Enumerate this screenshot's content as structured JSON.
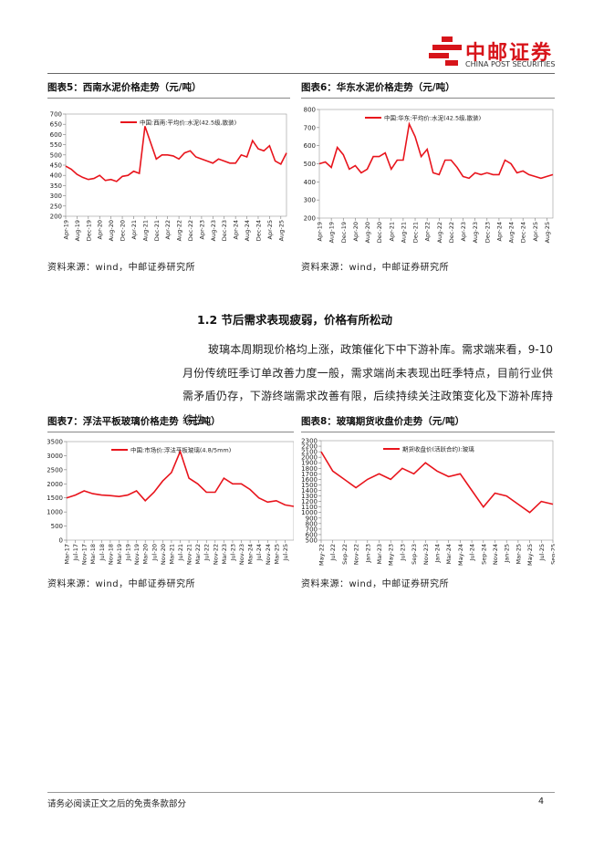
{
  "header": {
    "logo_cn": "中邮证券",
    "logo_en": "CHINA POST SECURITIES"
  },
  "section_title": "1.2 节后需求表现疲弱，价格有所松动",
  "paragraph": "玻璃本周期现价格均上涨，政策催化下中下游补库。需求端来看，9-10 月份传统旺季订单改善力度一般，需求端尚未表现出旺季特点，目前行业供需矛盾仍存，下游终端需求改善有限，后续持续关注政策变化及下游补库持续性。",
  "footer": {
    "disclaimer": "请务必阅读正文之后的免责条款部分",
    "page": "4"
  },
  "chart_data": [
    {
      "type": "line",
      "title": "图表5：西南水泥价格走势（元/吨）",
      "source": "资料来源：wind，中邮证券研究所",
      "categories": [
        "Apr-19",
        null,
        "Aug-19",
        null,
        "Dec-19",
        null,
        "Apr-20",
        null,
        "Aug-20",
        null,
        "Dec-20",
        null,
        "Apr-21",
        null,
        "Aug-21",
        null,
        "Dec-21",
        null,
        "Apr-22",
        null,
        "Aug-22",
        null,
        "Dec-22",
        null,
        "Apr-23",
        null,
        "Aug-23",
        null,
        "Dec-23",
        null,
        "Apr-24",
        null,
        "Aug-24",
        null,
        "Dec-24",
        null,
        "Apr-25",
        null,
        "Aug-25",
        null
      ],
      "series": [
        {
          "name": "中国:西南:平均价:水泥(42.5级,散装)",
          "color": "#e8141c",
          "values": [
            445,
            430,
            405,
            390,
            380,
            385,
            400,
            375,
            380,
            370,
            395,
            400,
            420,
            410,
            640,
            560,
            480,
            500,
            500,
            495,
            480,
            510,
            520,
            490,
            480,
            470,
            460,
            480,
            470,
            460,
            460,
            500,
            490,
            570,
            530,
            520,
            545,
            470,
            455,
            510
          ]
        }
      ],
      "ylim": [
        200,
        700
      ],
      "yticks": [
        200,
        250,
        300,
        350,
        400,
        450,
        500,
        550,
        600,
        650,
        700
      ]
    },
    {
      "type": "line",
      "title": "图表6：华东水泥价格走势（元/吨）",
      "source": "资料来源：wind，中邮证券研究所",
      "categories": [
        "Apr-19",
        null,
        "Aug-19",
        null,
        "Dec-19",
        null,
        "Apr-20",
        null,
        "Aug-20",
        null,
        "Dec-20",
        null,
        "Apr-21",
        null,
        "Aug-21",
        null,
        "Dec-21",
        null,
        "Apr-22",
        null,
        "Aug-22",
        null,
        "Dec-22",
        null,
        "Apr-23",
        null,
        "Aug-23",
        null,
        "Dec-23",
        null,
        "Apr-24",
        null,
        "Aug-24",
        null,
        "Dec-24",
        null,
        "Apr-25",
        null,
        "Aug-25",
        null
      ],
      "series": [
        {
          "name": "中国:华东:平均价:水泥(42.5级,散装)",
          "color": "#e8141c",
          "values": [
            500,
            510,
            480,
            590,
            550,
            470,
            490,
            450,
            470,
            540,
            540,
            560,
            470,
            520,
            520,
            720,
            650,
            540,
            580,
            450,
            440,
            520,
            520,
            480,
            430,
            420,
            450,
            440,
            450,
            440,
            440,
            520,
            500,
            450,
            460,
            440,
            430,
            420,
            430,
            440
          ]
        }
      ],
      "ylim": [
        200,
        800
      ],
      "yticks": [
        200,
        300,
        400,
        500,
        600,
        700,
        800
      ]
    },
    {
      "type": "line",
      "title": "图表7：浮法平板玻璃价格走势（元/吨）",
      "source": "资料来源：wind，中邮证券研究所",
      "categories": [
        "Mar-17",
        "Jul-17",
        "Nov-17",
        "Mar-18",
        "Jul-18",
        "Nov-18",
        "Mar-19",
        "Jul-19",
        "Nov-19",
        "Mar-20",
        "Jul-20",
        "Nov-20",
        "Mar-21",
        "Jul-21",
        "Nov-21",
        "Mar-22",
        "Jul-22",
        "Nov-22",
        "Mar-23",
        "Jul-23",
        "Nov-23",
        "Mar-24",
        "Jul-24",
        "Nov-24",
        "Mar-25",
        "Jul-25",
        null
      ],
      "series": [
        {
          "name": "中国:市场价:浮法平板玻璃(4.8/5mm)",
          "color": "#e8141c",
          "values": [
            1500,
            1600,
            1750,
            1650,
            1600,
            1580,
            1550,
            1600,
            1750,
            1400,
            1700,
            2100,
            2400,
            3150,
            2200,
            2000,
            1700,
            1700,
            2200,
            2000,
            2000,
            1800,
            1500,
            1350,
            1400,
            1250,
            1200
          ]
        }
      ],
      "ylim": [
        0,
        3500
      ],
      "yticks": [
        0,
        500,
        1000,
        1500,
        2000,
        2500,
        3000,
        3500
      ]
    },
    {
      "type": "line",
      "title": "图表8：玻璃期货收盘价走势（元/吨）",
      "source": "资料来源：wind，中邮证券研究所",
      "categories": [
        "May-22",
        "Jul-22",
        "Sep-22",
        "Nov-22",
        "Jan-23",
        "Mar-23",
        "May-23",
        "Jul-23",
        "Sep-23",
        "Nov-23",
        "Jan-24",
        "Mar-24",
        "May-24",
        "Jul-24",
        "Sep-24",
        "Nov-24",
        "Jan-25",
        "Mar-25",
        "May-25",
        "Jul-25",
        "Sep-25"
      ],
      "series": [
        {
          "name": "期货收盘价(活跃合约):玻璃",
          "color": "#e8141c",
          "values": [
            2100,
            1750,
            1600,
            1450,
            1600,
            1700,
            1600,
            1800,
            1700,
            1900,
            1750,
            1650,
            1700,
            1400,
            1100,
            1350,
            1300,
            1150,
            1000,
            1200,
            1150
          ]
        }
      ],
      "ylim": [
        500,
        2300
      ],
      "yticks": [
        500,
        600,
        700,
        800,
        900,
        1000,
        1100,
        1200,
        1300,
        1400,
        1500,
        1600,
        1700,
        1800,
        1900,
        2000,
        2100,
        2200,
        2300
      ]
    }
  ]
}
